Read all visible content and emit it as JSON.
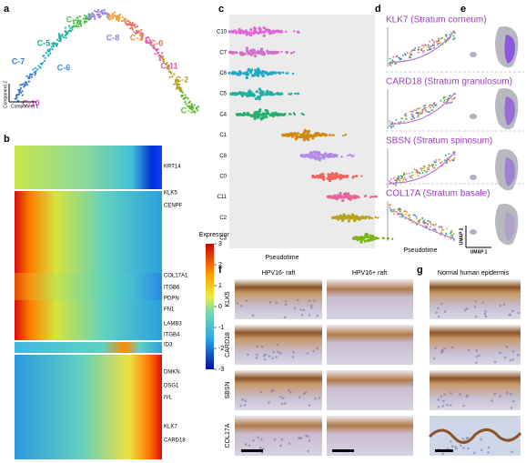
{
  "panels": {
    "a": {
      "label": "a",
      "clusters": [
        "C-4",
        "C-8",
        "C-1",
        "C-0",
        "C-5",
        "C-7",
        "C-6",
        "C-11",
        "C-2",
        "C-3",
        "C-10"
      ],
      "axis_x": "Component 1",
      "axis_y": "Component 2"
    },
    "b": {
      "label": "b",
      "genes": [
        "KRT14",
        "KLK5",
        "CENPF",
        "COL17A1",
        "ITGB6",
        "PDPN",
        "FN1",
        "LAMB3",
        "ITGB4",
        "ID3",
        "DMKN",
        "DSG1",
        "IVL",
        "KLK7",
        "CARD18"
      ],
      "colorbar": {
        "title": "Expression",
        "ticks": [
          3,
          2,
          1,
          0,
          -1,
          -2,
          -3
        ]
      }
    },
    "c": {
      "label": "c",
      "rows": [
        "C10",
        "C7",
        "C6",
        "C5",
        "C4",
        "C1",
        "C8",
        "C0",
        "C11",
        "C2",
        "C3"
      ],
      "x_label": "Pseudotime"
    },
    "d": {
      "label": "d",
      "titles": [
        "KLK7 (Stratum corneum)",
        "CARD18 (Stratum granulosum)",
        "SBSN (Stratum spinosum)",
        "COL17A (Stratum basale)"
      ],
      "x_label": "Pseudotime"
    },
    "e": {
      "label": "e",
      "axis_x": "UMAP 1",
      "axis_y": "UMAP 2"
    },
    "f": {
      "label": "f",
      "columns": [
        "HPV16- raft",
        "HPV16+ raft"
      ],
      "rows": [
        "KLK5",
        "CARD18",
        "SBSN",
        "COL17A"
      ]
    },
    "g": {
      "label": "g",
      "column": "Normal human epidermis"
    }
  }
}
